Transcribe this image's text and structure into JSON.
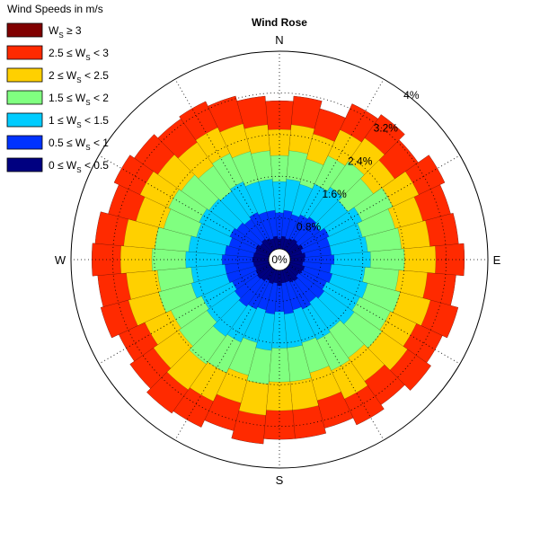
{
  "chart_data": {
    "type": "wind-rose",
    "title": "Wind Rose",
    "legend_title": "Wind Speeds in m/s",
    "legend_placement": "top-left",
    "grid": true,
    "directions": [
      "N",
      "E",
      "S",
      "W"
    ],
    "radial_axis": {
      "unit": "%",
      "ticks": [
        0,
        0.8,
        1.6,
        2.4,
        3.2,
        4
      ],
      "tick_labels": [
        "0%",
        "0.8%",
        "1.6%",
        "2.4%",
        "3.2%",
        "4%"
      ],
      "max": 4.0
    },
    "bins": [
      {
        "label_prefix": "W",
        "label_sub": "S",
        "label_suffix": " ≥ 3",
        "range": [
          3,
          null
        ],
        "color": "#800000"
      },
      {
        "label_prefix": "2.5 ≤ W",
        "label_sub": "S",
        "label_suffix": " < 3",
        "range": [
          2.5,
          3
        ],
        "color": "#ff2a00"
      },
      {
        "label_prefix": "2 ≤ W",
        "label_sub": "S",
        "label_suffix": " < 2.5",
        "range": [
          2,
          2.5
        ],
        "color": "#ffd000"
      },
      {
        "label_prefix": "1.5 ≤ W",
        "label_sub": "S",
        "label_suffix": " < 2",
        "range": [
          1.5,
          2
        ],
        "color": "#80ff80"
      },
      {
        "label_prefix": "1 ≤ W",
        "label_sub": "S",
        "label_suffix": " < 1.5",
        "range": [
          1,
          1.5
        ],
        "color": "#00ccff"
      },
      {
        "label_prefix": "0.5 ≤ W",
        "label_sub": "S",
        "label_suffix": " < 1",
        "range": [
          0.5,
          1
        ],
        "color": "#0033ff"
      },
      {
        "label_prefix": "0 ≤ W",
        "label_sub": "S",
        "label_suffix": " < 0.5",
        "range": [
          0,
          0.5
        ],
        "color": "#000080"
      }
    ],
    "sector_angles_deg": [
      0,
      10,
      20,
      30,
      40,
      50,
      60,
      70,
      80,
      90,
      100,
      110,
      120,
      130,
      140,
      150,
      160,
      170,
      180,
      190,
      200,
      210,
      220,
      230,
      240,
      250,
      260,
      270,
      280,
      290,
      300,
      310,
      320,
      330,
      340,
      350
    ],
    "sector_width_deg": 10,
    "cumulative_percent": {
      "0 to 0.5": [
        0.4,
        0.45,
        0.42,
        0.45,
        0.48,
        0.45,
        0.5,
        0.45,
        0.5,
        0.48,
        0.45,
        0.5,
        0.48,
        0.45,
        0.5,
        0.48,
        0.45,
        0.45,
        0.5,
        0.45,
        0.48,
        0.45,
        0.5,
        0.52,
        0.5,
        0.48,
        0.5,
        0.52,
        0.5,
        0.48,
        0.5,
        0.45,
        0.48,
        0.45,
        0.42,
        0.45
      ],
      "0 to 1": [
        0.9,
        0.95,
        0.9,
        0.95,
        1.0,
        0.95,
        1.05,
        1.0,
        1.0,
        1.05,
        1.0,
        1.05,
        1.0,
        1.05,
        1.0,
        1.05,
        1.0,
        1.05,
        1.0,
        1.05,
        1.0,
        1.05,
        1.1,
        1.05,
        1.0,
        1.05,
        1.05,
        1.1,
        1.05,
        1.0,
        1.05,
        1.0,
        0.95,
        1.0,
        0.95,
        0.95
      ],
      "0 to 1.5": [
        1.5,
        1.55,
        1.5,
        1.6,
        1.7,
        1.6,
        1.75,
        1.65,
        1.7,
        1.75,
        1.65,
        1.75,
        1.7,
        1.75,
        1.65,
        1.7,
        1.65,
        1.7,
        1.7,
        1.75,
        1.65,
        1.75,
        1.8,
        1.7,
        1.65,
        1.75,
        1.7,
        1.8,
        1.75,
        1.65,
        1.7,
        1.65,
        1.6,
        1.65,
        1.55,
        1.55
      ],
      "0 to 2": [
        2.0,
        2.1,
        2.0,
        2.2,
        2.3,
        2.2,
        2.4,
        2.3,
        2.35,
        2.4,
        2.3,
        2.4,
        2.35,
        2.4,
        2.3,
        2.35,
        2.25,
        2.35,
        2.35,
        2.4,
        2.3,
        2.4,
        2.45,
        2.35,
        2.3,
        2.4,
        2.35,
        2.45,
        2.4,
        2.3,
        2.35,
        2.3,
        2.2,
        2.25,
        2.15,
        2.1
      ],
      "0 to 2.5": [
        2.5,
        2.6,
        2.5,
        2.75,
        2.85,
        2.7,
        2.95,
        2.85,
        2.9,
        3.0,
        2.85,
        3.0,
        2.9,
        3.0,
        2.85,
        2.95,
        2.8,
        2.9,
        2.9,
        3.0,
        2.85,
        3.0,
        3.05,
        2.95,
        2.85,
        3.0,
        2.95,
        3.05,
        3.0,
        2.85,
        2.95,
        2.85,
        2.75,
        2.8,
        2.7,
        2.6
      ],
      "0 to 3": [
        3.05,
        3.15,
        3.0,
        3.3,
        3.4,
        3.25,
        3.5,
        3.4,
        3.45,
        3.55,
        3.4,
        3.55,
        3.45,
        3.55,
        3.4,
        3.5,
        3.35,
        3.45,
        3.45,
        3.55,
        3.4,
        3.55,
        3.6,
        3.5,
        3.4,
        3.55,
        3.5,
        3.6,
        3.55,
        3.4,
        3.5,
        3.4,
        3.3,
        3.35,
        3.25,
        3.15
      ],
      "all": [
        3.05,
        3.15,
        3.0,
        3.3,
        3.4,
        3.25,
        3.5,
        3.4,
        3.45,
        3.55,
        3.4,
        3.55,
        3.45,
        3.55,
        3.4,
        3.5,
        3.35,
        3.45,
        3.45,
        3.55,
        3.4,
        3.55,
        3.6,
        3.5,
        3.4,
        3.55,
        3.5,
        3.6,
        3.55,
        3.4,
        3.5,
        3.4,
        3.3,
        3.35,
        3.25,
        3.15
      ]
    }
  }
}
